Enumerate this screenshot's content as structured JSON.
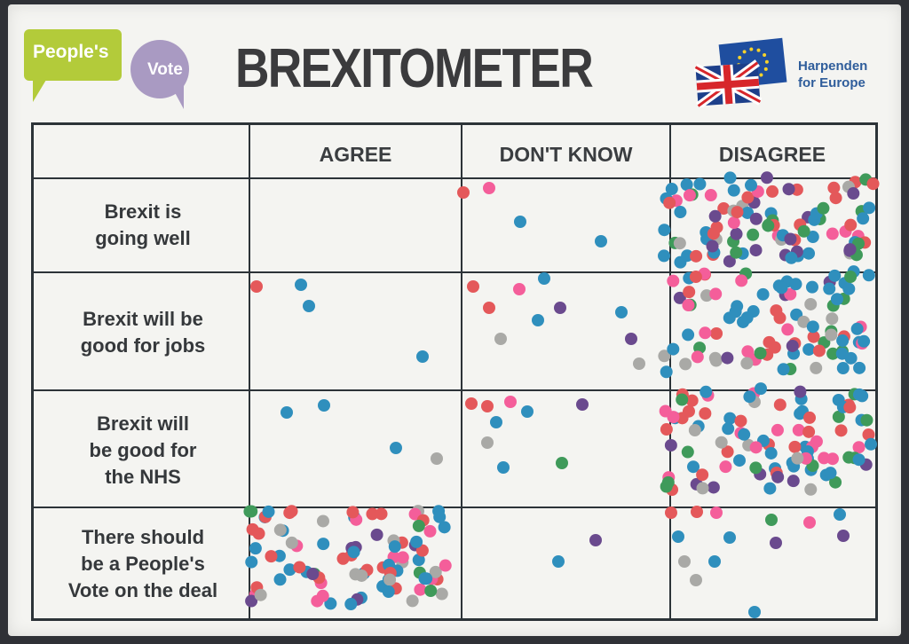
{
  "header": {
    "title": "BREXITOMETER",
    "logo_left": {
      "line1": "People's",
      "line2": "Vote"
    },
    "logo_right": {
      "line1": "Harpenden",
      "line2": "for Europe"
    }
  },
  "columns": [
    "AGREE",
    "DON'T KNOW",
    "DISAGREE"
  ],
  "rows": [
    {
      "label_lines": [
        "Brexit is",
        "going well"
      ]
    },
    {
      "label_lines": [
        "Brexit will be",
        "good for jobs"
      ]
    },
    {
      "label_lines": [
        "Brexit will",
        "be good for",
        "the NHS"
      ]
    },
    {
      "label_lines": [
        "There should",
        "be a People's",
        "Vote on the deal"
      ]
    }
  ],
  "colors": {
    "blue": "#2f8fbd",
    "red": "#e4585a",
    "pink": "#f45e9a",
    "green": "#3f9a5a",
    "grey": "#a9a9a6",
    "purple": "#6a4a8e",
    "peoples_green": "#b3cb3a",
    "peoples_purple": "#a99ac2",
    "title": "#3b3b3d"
  }
}
